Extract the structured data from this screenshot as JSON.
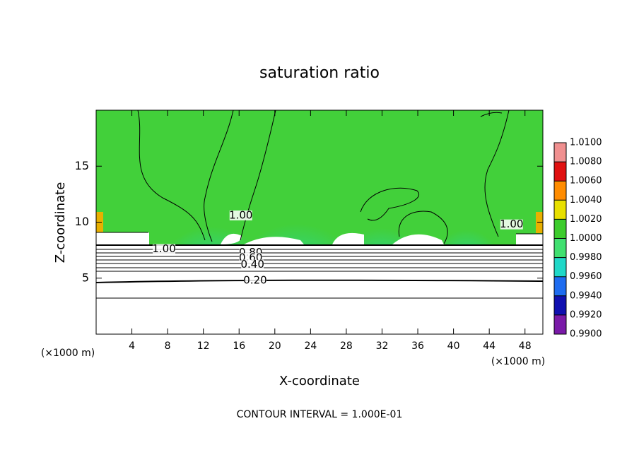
{
  "chart_data": {
    "type": "contour",
    "title": "saturation ratio",
    "xlabel": "X-coordinate",
    "ylabel": "Z-coordinate",
    "xunit": "(×1000 m)",
    "yunit": "(×1000 m)",
    "xlim": [
      0,
      50
    ],
    "xticks": [
      4,
      8,
      12,
      16,
      20,
      24,
      28,
      32,
      36,
      40,
      44,
      48
    ],
    "ylim": [
      0,
      20
    ],
    "yticks": [
      5,
      10,
      15
    ],
    "footnote": "CONTOUR INTERVAL = 1.000E-01",
    "annotations": [
      {
        "text": "1.00",
        "x": 7.6,
        "y": 7.6
      },
      {
        "text": "0.80",
        "x": 17.3,
        "y": 7.3
      },
      {
        "text": "0.60",
        "x": 17.3,
        "y": 6.8
      },
      {
        "text": "0.40",
        "x": 17.5,
        "y": 6.2
      },
      {
        "text": "0.20",
        "x": 17.8,
        "y": 4.8
      },
      {
        "text": "1.00",
        "x": 16.2,
        "y": 10.6
      },
      {
        "text": "1.00",
        "x": 46.5,
        "y": 9.8
      }
    ],
    "colorbar": {
      "ticks": [
        {
          "value": 0.99,
          "label": "0.9900"
        },
        {
          "value": 0.992,
          "label": "0.9920"
        },
        {
          "value": 0.994,
          "label": "0.9940"
        },
        {
          "value": 0.996,
          "label": "0.9960"
        },
        {
          "value": 0.998,
          "label": "0.9980"
        },
        {
          "value": 1.0,
          "label": "1.0000"
        },
        {
          "value": 1.002,
          "label": "1.0020"
        },
        {
          "value": 1.004,
          "label": "1.0040"
        },
        {
          "value": 1.006,
          "label": "1.0060"
        },
        {
          "value": 1.008,
          "label": "1.0080"
        },
        {
          "value": 1.01,
          "label": "1.0100"
        }
      ],
      "colors": [
        "#7a1aa8",
        "#1010b0",
        "#1e6cf0",
        "#20d8c8",
        "#40e070",
        "#3ccc2c",
        "#e8e000",
        "#ff8c00",
        "#e01010",
        "#f09090"
      ]
    }
  }
}
